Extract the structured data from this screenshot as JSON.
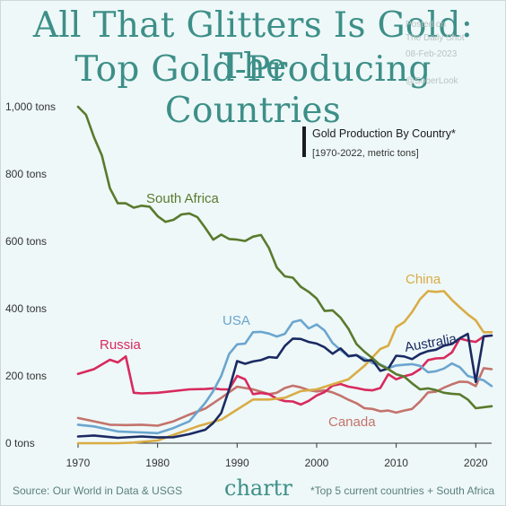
{
  "header": {
    "title_line1": "All That Glitters Is Gold: The",
    "title_line2": "Top Gold-Producing Countries",
    "watermark": [
      "Posted on",
      "The Daily Shot",
      "08-Feb-2023",
      "@SoberLook"
    ]
  },
  "footer": {
    "source": "Source: Our World in Data & USGS",
    "brand": "chartr",
    "note": "*Top 5 current countries + South Africa"
  },
  "colors": {
    "title": "#3d8f88",
    "background": "#eef8f8",
    "south_africa": "#5a7a2e",
    "china": "#d9ac45",
    "usa": "#6ba5cf",
    "australia": "#1b2a63",
    "russia": "#d82a5e",
    "canada": "#c4736c"
  },
  "chart_data": {
    "type": "line",
    "legend_title": "Gold Production By Country*",
    "legend_subtitle": "[1970-2022, metric tons]",
    "xlim": [
      1970,
      2022
    ],
    "ylim": [
      0,
      1000
    ],
    "xticks": [
      "1970",
      "1980",
      "1990",
      "2000",
      "2010",
      "2020"
    ],
    "yticks": [
      "0 tons",
      "200 tons",
      "400 tons",
      "600 tons",
      "800 tons",
      "1,000 tons"
    ],
    "grid": false,
    "series": [
      {
        "name": "South Africa",
        "color": "#5a7a2e",
        "x": [
          1970,
          1971,
          1972,
          1973,
          1974,
          1975,
          1976,
          1977,
          1978,
          1979,
          1980,
          1981,
          1982,
          1983,
          1984,
          1985,
          1986,
          1987,
          1988,
          1989,
          1990,
          1991,
          1992,
          1993,
          1994,
          1995,
          1996,
          1997,
          1998,
          1999,
          2000,
          2001,
          2002,
          2003,
          2004,
          2005,
          2006,
          2007,
          2008,
          2009,
          2010,
          2011,
          2012,
          2013,
          2014,
          2015,
          2016,
          2017,
          2018,
          2019,
          2020,
          2021,
          2022
        ],
        "y": [
          1000,
          976,
          910,
          855,
          758,
          713,
          713,
          700,
          706,
          703,
          675,
          658,
          664,
          680,
          683,
          672,
          640,
          605,
          620,
          607,
          605,
          601,
          614,
          619,
          580,
          522,
          496,
          492,
          465,
          450,
          430,
          393,
          395,
          373,
          340,
          295,
          272,
          253,
          232,
          220,
          205,
          198,
          178,
          160,
          163,
          158,
          150,
          147,
          145,
          130,
          104,
          107,
          110
        ]
      },
      {
        "name": "China",
        "color": "#d9ac45",
        "x": [
          1970,
          1975,
          1977,
          1980,
          1985,
          1988,
          1990,
          1992,
          1994,
          1996,
          1998,
          2000,
          2002,
          2004,
          2006,
          2008,
          2009,
          2010,
          2011,
          2012,
          2013,
          2014,
          2015,
          2016,
          2017,
          2018,
          2019,
          2020,
          2021,
          2022
        ],
        "y": [
          0,
          0,
          2,
          8,
          50,
          70,
          100,
          130,
          130,
          135,
          155,
          160,
          175,
          190,
          230,
          280,
          290,
          345,
          360,
          390,
          428,
          452,
          450,
          452,
          426,
          404,
          383,
          365,
          330,
          330
        ]
      },
      {
        "name": "USA",
        "color": "#6ba5cf",
        "x": [
          1970,
          1972,
          1975,
          1978,
          1980,
          1982,
          1984,
          1986,
          1987,
          1988,
          1989,
          1990,
          1991,
          1992,
          1993,
          1994,
          1995,
          1996,
          1997,
          1998,
          1999,
          2000,
          2001,
          2002,
          2003,
          2004,
          2005,
          2006,
          2007,
          2008,
          2009,
          2010,
          2011,
          2012,
          2013,
          2014,
          2015,
          2016,
          2017,
          2018,
          2019,
          2020,
          2021,
          2022
        ],
        "y": [
          55,
          50,
          35,
          32,
          30,
          45,
          65,
          120,
          155,
          200,
          265,
          294,
          296,
          330,
          331,
          326,
          317,
          325,
          360,
          366,
          341,
          353,
          335,
          298,
          277,
          258,
          262,
          252,
          238,
          234,
          223,
          231,
          233,
          235,
          230,
          211,
          214,
          222,
          237,
          226,
          200,
          193,
          187,
          170
        ]
      },
      {
        "name": "Australia",
        "color": "#1b2a63",
        "x": [
          1970,
          1972,
          1975,
          1978,
          1980,
          1982,
          1984,
          1986,
          1987,
          1988,
          1989,
          1990,
          1991,
          1992,
          1993,
          1994,
          1995,
          1996,
          1997,
          1998,
          1999,
          2000,
          2001,
          2002,
          2003,
          2004,
          2005,
          2006,
          2007,
          2008,
          2009,
          2010,
          2011,
          2012,
          2013,
          2014,
          2015,
          2016,
          2017,
          2018,
          2019,
          2020,
          2021,
          2022
        ],
        "y": [
          20,
          23,
          16,
          20,
          17,
          18,
          27,
          40,
          60,
          90,
          160,
          244,
          236,
          243,
          247,
          256,
          254,
          289,
          311,
          310,
          301,
          296,
          285,
          266,
          282,
          259,
          262,
          245,
          247,
          215,
          222,
          260,
          258,
          250,
          265,
          274,
          278,
          290,
          295,
          312,
          325,
          182,
          318,
          320
        ]
      },
      {
        "name": "Russia",
        "color": "#d82a5e",
        "x": [
          1970,
          1972,
          1974,
          1975,
          1976,
          1977,
          1978,
          1980,
          1984,
          1986,
          1987,
          1988,
          1989,
          1990,
          1991,
          1992,
          1993,
          1994,
          1995,
          1996,
          1997,
          1998,
          1999,
          2000,
          2001,
          2002,
          2003,
          2004,
          2005,
          2006,
          2007,
          2008,
          2009,
          2010,
          2011,
          2012,
          2013,
          2014,
          2015,
          2016,
          2017,
          2018,
          2019,
          2020,
          2021,
          2022
        ],
        "y": [
          206,
          220,
          248,
          240,
          258,
          150,
          148,
          150,
          160,
          161,
          163,
          160,
          160,
          200,
          190,
          146,
          149,
          146,
          132,
          125,
          124,
          115,
          126,
          142,
          152,
          171,
          176,
          168,
          164,
          159,
          157,
          164,
          205,
          190,
          199,
          205,
          220,
          247,
          252,
          253,
          270,
          311,
          305,
          301,
          317,
          320
        ]
      },
      {
        "name": "Canada",
        "color": "#c4736c",
        "x": [
          1970,
          1972,
          1974,
          1976,
          1978,
          1980,
          1982,
          1984,
          1986,
          1988,
          1990,
          1992,
          1993,
          1994,
          1995,
          1996,
          1997,
          1998,
          1999,
          2000,
          2001,
          2002,
          2003,
          2004,
          2005,
          2006,
          2007,
          2008,
          2009,
          2010,
          2011,
          2012,
          2013,
          2014,
          2015,
          2016,
          2017,
          2018,
          2019,
          2020,
          2021,
          2022
        ],
        "y": [
          75,
          65,
          55,
          54,
          55,
          52,
          65,
          85,
          103,
          135,
          168,
          160,
          153,
          146,
          150,
          164,
          171,
          166,
          158,
          154,
          157,
          151,
          141,
          129,
          119,
          104,
          102,
          95,
          97,
          91,
          97,
          102,
          124,
          151,
          153,
          165,
          175,
          183,
          182,
          170,
          223,
          220
        ]
      }
    ],
    "annotations": [
      {
        "text": "South Africa",
        "series": "South Africa"
      },
      {
        "text": "China",
        "series": "China"
      },
      {
        "text": "USA",
        "series": "USA"
      },
      {
        "text": "Australia",
        "series": "Australia"
      },
      {
        "text": "Russia",
        "series": "Russia"
      },
      {
        "text": "Canada",
        "series": "Canada"
      }
    ]
  }
}
